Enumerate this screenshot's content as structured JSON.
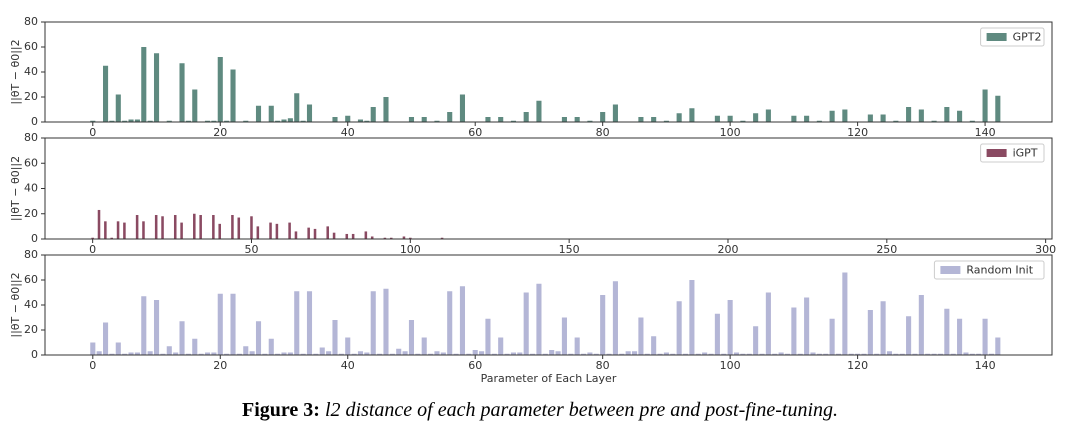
{
  "chart_data": [
    {
      "type": "bar",
      "ylabel": "||θT − θ0||2",
      "legend": "upper right",
      "series": [
        {
          "name": "GPT2",
          "color": "#5f8a80",
          "values": [
            1,
            0,
            45,
            1,
            22,
            1,
            2,
            2,
            60,
            1,
            55,
            0,
            1,
            0,
            47,
            1,
            26,
            0,
            1,
            1,
            52,
            1,
            42,
            0,
            1,
            0,
            13,
            0,
            13,
            1,
            2,
            3,
            23,
            1,
            14,
            0,
            0,
            0,
            4,
            0,
            5,
            0,
            2,
            1,
            12,
            0,
            20,
            0,
            0,
            0,
            4,
            0,
            4,
            0,
            1,
            0,
            8,
            0,
            22,
            0,
            0,
            0,
            4,
            0,
            4,
            0,
            1,
            0,
            8,
            0,
            17,
            0,
            0,
            0,
            4,
            0,
            4,
            0,
            1,
            0,
            8,
            0,
            14,
            0,
            0,
            0,
            4,
            0,
            4,
            0,
            1,
            0,
            7,
            0,
            11,
            0,
            0,
            0,
            5,
            0,
            5,
            0,
            1,
            0,
            7,
            0,
            10,
            0,
            0,
            0,
            5,
            0,
            5,
            0,
            1,
            0,
            9,
            0,
            10,
            0,
            0,
            0,
            6,
            0,
            6,
            0,
            1,
            0,
            12,
            0,
            10,
            0,
            1,
            0,
            12,
            0,
            9,
            0,
            1,
            0,
            26,
            0,
            21,
            0
          ]
        }
      ],
      "xlim": [
        -7.5,
        150.5
      ],
      "xticks": [
        0,
        20,
        40,
        60,
        80,
        100,
        120,
        140
      ],
      "ylim": [
        0,
        80
      ],
      "yticks": [
        0,
        20,
        40,
        60,
        80
      ]
    },
    {
      "type": "bar",
      "ylabel": "||θT − θ0||2",
      "legend": "upper right",
      "series": [
        {
          "name": "iGPT",
          "color": "#8a4a62",
          "values": [
            1,
            0,
            23,
            0,
            14,
            0,
            1,
            0,
            14,
            0,
            13,
            0,
            0,
            0,
            19,
            0,
            14,
            0,
            0,
            0,
            19,
            0,
            18,
            0,
            0,
            0,
            19,
            0,
            13,
            0,
            0,
            0,
            20,
            0,
            19,
            0,
            0,
            0,
            19,
            0,
            12,
            0,
            0,
            0,
            19,
            0,
            17,
            0,
            0,
            0,
            18,
            0,
            10,
            0,
            0,
            0,
            13,
            0,
            12,
            0,
            0,
            0,
            13,
            0,
            6,
            0,
            0,
            0,
            9,
            0,
            8,
            0,
            0,
            0,
            10,
            0,
            5,
            0,
            0,
            0,
            4,
            0,
            4,
            0,
            0,
            0,
            6,
            0,
            2,
            0,
            0,
            0,
            1,
            0,
            1,
            0,
            0,
            0,
            2,
            0,
            1,
            0,
            0,
            0,
            0,
            0,
            0,
            0,
            0,
            0,
            1,
            0
          ]
        }
      ],
      "xlim": [
        -15,
        302
      ],
      "xticks": [
        0,
        50,
        100,
        150,
        200,
        250,
        300
      ],
      "ylim": [
        0,
        80
      ],
      "yticks": [
        0,
        20,
        40,
        60,
        80
      ]
    },
    {
      "type": "bar",
      "ylabel": "||θT − θ0||2",
      "xlabel": "Parameter of Each Layer",
      "legend": "upper right",
      "series": [
        {
          "name": "Random Init",
          "color": "#b4b6d6",
          "values": [
            10,
            3,
            26,
            1,
            10,
            1,
            2,
            2,
            47,
            3,
            44,
            1,
            7,
            2,
            27,
            1,
            13,
            1,
            2,
            2,
            49,
            1,
            49,
            1,
            7,
            3,
            27,
            1,
            13,
            1,
            2,
            2,
            51,
            1,
            51,
            1,
            6,
            3,
            28,
            1,
            14,
            1,
            3,
            2,
            51,
            1,
            53,
            1,
            5,
            3,
            28,
            1,
            14,
            1,
            3,
            2,
            51,
            1,
            55,
            1,
            4,
            3,
            29,
            1,
            14,
            1,
            2,
            2,
            50,
            1,
            57,
            1,
            4,
            3,
            30,
            1,
            14,
            1,
            2,
            1,
            48,
            1,
            59,
            1,
            3,
            3,
            30,
            1,
            15,
            1,
            2,
            1,
            43,
            1,
            60,
            1,
            2,
            1,
            33,
            1,
            44,
            2,
            1,
            1,
            23,
            1,
            50,
            1,
            2,
            1,
            38,
            1,
            46,
            2,
            1,
            1,
            29,
            1,
            66,
            1,
            1,
            1,
            36,
            1,
            43,
            3,
            1,
            1,
            31,
            1,
            48,
            1,
            1,
            1,
            37,
            1,
            29,
            2,
            1,
            1,
            29,
            1,
            14,
            0
          ]
        }
      ],
      "xlim": [
        -7.5,
        150.5
      ],
      "xticks": [
        0,
        20,
        40,
        60,
        80,
        100,
        120,
        140
      ],
      "ylim": [
        0,
        80
      ],
      "yticks": [
        0,
        20,
        40,
        60,
        80
      ]
    }
  ],
  "caption": {
    "label": "Figure 3:",
    "text": "l2 distance of each parameter between pre and post-fine-tuning."
  }
}
